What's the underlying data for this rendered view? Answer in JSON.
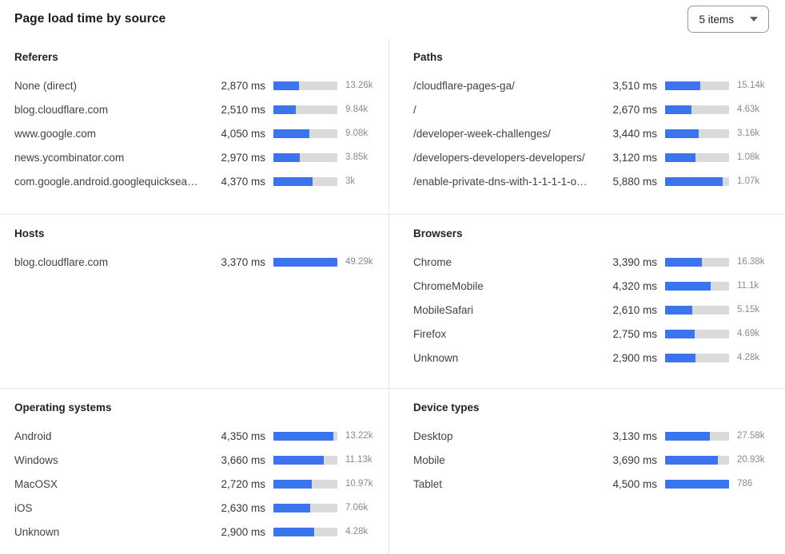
{
  "header": {
    "title": "Page load time by source",
    "items_select_value": "5 items"
  },
  "colors": {
    "bar_fill": "#3b74ec",
    "bar_track": "#d8dadc",
    "divider": "#e4e6e8",
    "title_text": "#17191c",
    "label_text": "#3f4247",
    "count_text": "#858b92"
  },
  "panels": [
    {
      "title": "Referers",
      "rows": [
        {
          "label": "None (direct)",
          "ms": "2,870 ms",
          "count": "13.26k",
          "bar_pct": 40
        },
        {
          "label": "blog.cloudflare.com",
          "ms": "2,510 ms",
          "count": "9.84k",
          "bar_pct": 35
        },
        {
          "label": "www.google.com",
          "ms": "4,050 ms",
          "count": "9.08k",
          "bar_pct": 56
        },
        {
          "label": "news.ycombinator.com",
          "ms": "2,970 ms",
          "count": "3.85k",
          "bar_pct": 41
        },
        {
          "label": "com.google.android.googlequicksearc...",
          "ms": "4,370 ms",
          "count": "3k",
          "bar_pct": 61
        }
      ]
    },
    {
      "title": "Paths",
      "rows": [
        {
          "label": "/cloudflare-pages-ga/",
          "ms": "3,510 ms",
          "count": "15.14k",
          "bar_pct": 55
        },
        {
          "label": "/",
          "ms": "2,670 ms",
          "count": "4.63k",
          "bar_pct": 41
        },
        {
          "label": "/developer-week-challenges/",
          "ms": "3,440 ms",
          "count": "3.16k",
          "bar_pct": 53
        },
        {
          "label": "/developers-developers-developers/",
          "ms": "3,120 ms",
          "count": "1.08k",
          "bar_pct": 47
        },
        {
          "label": "/enable-private-dns-with-1-1-1-1-on-...",
          "ms": "5,880 ms",
          "count": "1.07k",
          "bar_pct": 90
        }
      ]
    },
    {
      "title": "Hosts",
      "rows": [
        {
          "label": "blog.cloudflare.com",
          "ms": "3,370 ms",
          "count": "49.29k",
          "bar_pct": 100
        }
      ]
    },
    {
      "title": "Browsers",
      "rows": [
        {
          "label": "Chrome",
          "ms": "3,390 ms",
          "count": "16.38k",
          "bar_pct": 57
        },
        {
          "label": "ChromeMobile",
          "ms": "4,320 ms",
          "count": "11.1k",
          "bar_pct": 71
        },
        {
          "label": "MobileSafari",
          "ms": "2,610 ms",
          "count": "5.15k",
          "bar_pct": 43
        },
        {
          "label": "Firefox",
          "ms": "2,750 ms",
          "count": "4.69k",
          "bar_pct": 46
        },
        {
          "label": "Unknown",
          "ms": "2,900 ms",
          "count": "4.28k",
          "bar_pct": 48
        }
      ]
    },
    {
      "title": "Operating systems",
      "rows": [
        {
          "label": "Android",
          "ms": "4,350 ms",
          "count": "13.22k",
          "bar_pct": 94
        },
        {
          "label": "Windows",
          "ms": "3,660 ms",
          "count": "11.13k",
          "bar_pct": 79
        },
        {
          "label": "MacOSX",
          "ms": "2,720 ms",
          "count": "10.97k",
          "bar_pct": 60
        },
        {
          "label": "iOS",
          "ms": "2,630 ms",
          "count": "7.06k",
          "bar_pct": 58
        },
        {
          "label": "Unknown",
          "ms": "2,900 ms",
          "count": "4.28k",
          "bar_pct": 64
        }
      ]
    },
    {
      "title": "Device types",
      "rows": [
        {
          "label": "Desktop",
          "ms": "3,130 ms",
          "count": "27.58k",
          "bar_pct": 70
        },
        {
          "label": "Mobile",
          "ms": "3,690 ms",
          "count": "20.93k",
          "bar_pct": 83
        },
        {
          "label": "Tablet",
          "ms": "4,500 ms",
          "count": "786",
          "bar_pct": 100
        }
      ]
    }
  ],
  "chart_data": [
    {
      "type": "bar",
      "title": "Referers",
      "orientation": "horizontal",
      "value_unit": "ms",
      "categories": [
        "None (direct)",
        "blog.cloudflare.com",
        "www.google.com",
        "news.ycombinator.com",
        "com.google.android.googlequicksearc..."
      ],
      "values": [
        2870,
        2510,
        4050,
        2970,
        4370
      ],
      "counts": [
        "13.26k",
        "9.84k",
        "9.08k",
        "3.85k",
        "3k"
      ]
    },
    {
      "type": "bar",
      "title": "Paths",
      "orientation": "horizontal",
      "value_unit": "ms",
      "categories": [
        "/cloudflare-pages-ga/",
        "/",
        "/developer-week-challenges/",
        "/developers-developers-developers/",
        "/enable-private-dns-with-1-1-1-1-on-..."
      ],
      "values": [
        3510,
        2670,
        3440,
        3120,
        5880
      ],
      "counts": [
        "15.14k",
        "4.63k",
        "3.16k",
        "1.08k",
        "1.07k"
      ]
    },
    {
      "type": "bar",
      "title": "Hosts",
      "orientation": "horizontal",
      "value_unit": "ms",
      "categories": [
        "blog.cloudflare.com"
      ],
      "values": [
        3370
      ],
      "counts": [
        "49.29k"
      ]
    },
    {
      "type": "bar",
      "title": "Browsers",
      "orientation": "horizontal",
      "value_unit": "ms",
      "categories": [
        "Chrome",
        "ChromeMobile",
        "MobileSafari",
        "Firefox",
        "Unknown"
      ],
      "values": [
        3390,
        4320,
        2610,
        2750,
        2900
      ],
      "counts": [
        "16.38k",
        "11.1k",
        "5.15k",
        "4.69k",
        "4.28k"
      ]
    },
    {
      "type": "bar",
      "title": "Operating systems",
      "orientation": "horizontal",
      "value_unit": "ms",
      "categories": [
        "Android",
        "Windows",
        "MacOSX",
        "iOS",
        "Unknown"
      ],
      "values": [
        4350,
        3660,
        2720,
        2630,
        2900
      ],
      "counts": [
        "13.22k",
        "11.13k",
        "10.97k",
        "7.06k",
        "4.28k"
      ]
    },
    {
      "type": "bar",
      "title": "Device types",
      "orientation": "horizontal",
      "value_unit": "ms",
      "categories": [
        "Desktop",
        "Mobile",
        "Tablet"
      ],
      "values": [
        3130,
        3690,
        4500
      ],
      "counts": [
        "27.58k",
        "20.93k",
        "786"
      ]
    }
  ]
}
